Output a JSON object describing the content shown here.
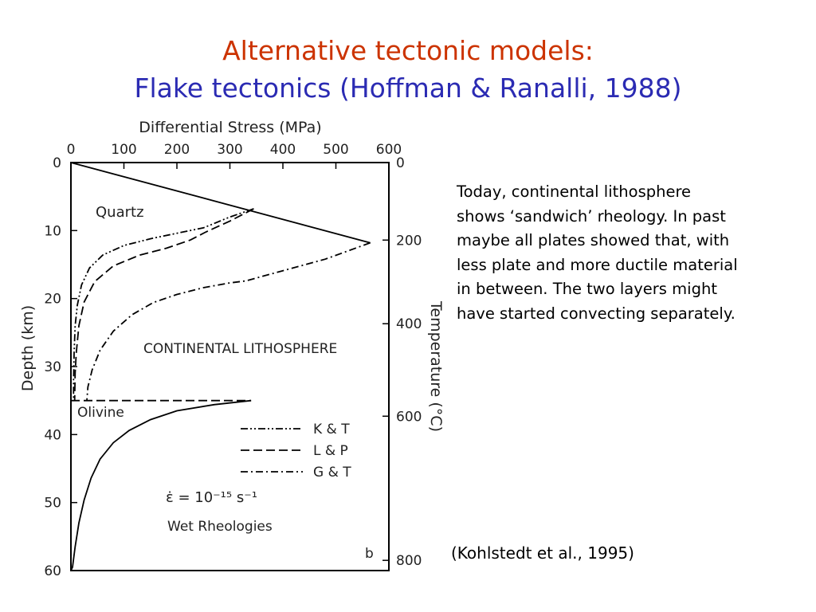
{
  "slide": {
    "title_line1": "Alternative tectonic models:",
    "title_line2": "Flake tectonics (Hoffman & Ranalli, 1988)",
    "description": "Today, continental lithosphere\nshows ‘sandwich’ rheology. In past\nmaybe all plates showed that, with\nless plate and more ductile material\nin between. The two layers might\nhave started convecting separately.",
    "citation": "(Kohlstedt et al., 1995)",
    "colors": {
      "title_line1": "#cc3300",
      "title_line2": "#2b2bb3"
    }
  },
  "chart_data": {
    "type": "line",
    "title": "",
    "xlabel": "Differential Stress (MPa)",
    "ylabel": "Depth (km)",
    "y2label": "Temperature (°C)",
    "xlim": [
      0,
      600
    ],
    "ylim": [
      60,
      0
    ],
    "xticks": [
      0,
      100,
      200,
      300,
      400,
      500,
      600
    ],
    "yticks": [
      0,
      10,
      20,
      30,
      40,
      50,
      60
    ],
    "y2ticks": [
      {
        "label": "0",
        "depth": 0
      },
      {
        "label": "200",
        "depth": 11.4
      },
      {
        "label": "400",
        "depth": 23.7
      },
      {
        "label": "600",
        "depth": 37.3
      },
      {
        "label": "800",
        "depth": 58.5
      }
    ],
    "panel_label": "b",
    "annotations": {
      "quartz": "Quartz",
      "olivine": "Olivine",
      "region": "CONTINENTAL LITHOSPHERE",
      "strain_rate": "ε̇ = 10⁻¹⁵ s⁻¹",
      "rheology": "Wet Rheologies"
    },
    "legend": [
      "K & T",
      "L & P",
      "G & T"
    ],
    "legend_position": "lower-right",
    "series": [
      {
        "name": "brittle",
        "style": "solid",
        "points": [
          [
            0,
            0
          ],
          [
            565,
            11.8
          ]
        ]
      },
      {
        "name": "K & T",
        "style": "dash-dot-dot",
        "points": [
          [
            345,
            6.8
          ],
          [
            300,
            8
          ],
          [
            250,
            9.6
          ],
          [
            200,
            10.4
          ],
          [
            150,
            11.2
          ],
          [
            100,
            12.2
          ],
          [
            60,
            13.6
          ],
          [
            35,
            15.5
          ],
          [
            20,
            18
          ],
          [
            12,
            21
          ],
          [
            8,
            24
          ],
          [
            6,
            28
          ],
          [
            5,
            32
          ],
          [
            5,
            35
          ]
        ]
      },
      {
        "name": "L & P",
        "style": "dashed",
        "points": [
          [
            345,
            6.8
          ],
          [
            300,
            8.6
          ],
          [
            255,
            10.2
          ],
          [
            225,
            11.4
          ],
          [
            180,
            12.6
          ],
          [
            130,
            13.6
          ],
          [
            80,
            15.2
          ],
          [
            45,
            17.5
          ],
          [
            25,
            20.5
          ],
          [
            15,
            24
          ],
          [
            10,
            28
          ],
          [
            8,
            31
          ],
          [
            7,
            35
          ]
        ]
      },
      {
        "name": "G & T",
        "style": "dash-dot",
        "points": [
          [
            565,
            11.8
          ],
          [
            480,
            14.2
          ],
          [
            400,
            15.9
          ],
          [
            330,
            17.4
          ],
          [
            300,
            17.7
          ],
          [
            250,
            18.4
          ],
          [
            200,
            19.4
          ],
          [
            155,
            20.6
          ],
          [
            115,
            22.4
          ],
          [
            80,
            24.8
          ],
          [
            55,
            27.6
          ],
          [
            40,
            30.5
          ],
          [
            32,
            33
          ],
          [
            30,
            35
          ]
        ]
      },
      {
        "name": "Olivine",
        "style": "solid",
        "points": [
          [
            340,
            35
          ],
          [
            270,
            35.6
          ],
          [
            200,
            36.5
          ],
          [
            150,
            37.8
          ],
          [
            110,
            39.4
          ],
          [
            80,
            41.2
          ],
          [
            55,
            43.6
          ],
          [
            38,
            46.4
          ],
          [
            25,
            49.6
          ],
          [
            15,
            53
          ],
          [
            8,
            56.5
          ],
          [
            3,
            59.5
          ],
          [
            0,
            60
          ]
        ]
      },
      {
        "name": "Moho",
        "style": "dashed",
        "points": [
          [
            0,
            35
          ],
          [
            340,
            35
          ]
        ]
      }
    ]
  }
}
